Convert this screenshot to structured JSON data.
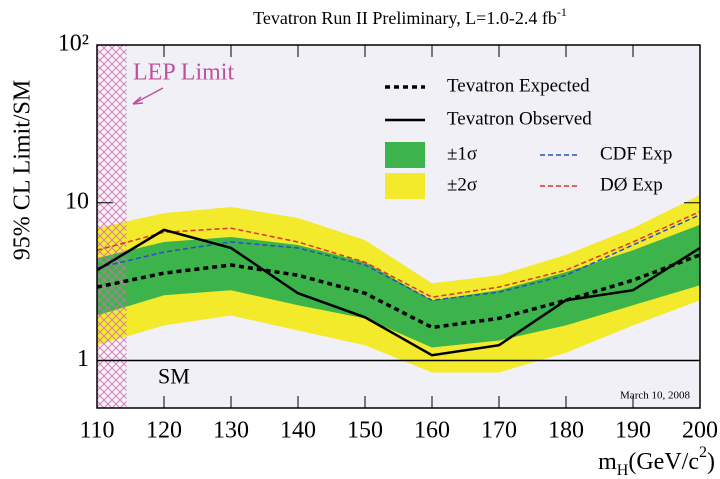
{
  "chart_data": {
    "type": "line",
    "title": [
      "Tevatron Run II Preliminary, L=1.0-2.4 fb",
      "-1"
    ],
    "x_label": [
      "m",
      "H",
      "(GeV/c",
      "2",
      ")"
    ],
    "y_label": "95% CL Limit/SM",
    "x": [
      110,
      120,
      130,
      140,
      150,
      160,
      170,
      180,
      190,
      200
    ],
    "xlim": [
      110,
      200
    ],
    "xticks": [
      110,
      120,
      130,
      140,
      150,
      160,
      170,
      180,
      190,
      200
    ],
    "ylim": [
      0.5,
      100
    ],
    "yticks": [
      1,
      10,
      {
        "value": 100,
        "label": "10²"
      }
    ],
    "log_y": true,
    "series": [
      {
        "name": "Tevatron Expected",
        "color": "#000000",
        "style": "dotted",
        "values": [
          2.92,
          3.58,
          4.03,
          3.47,
          2.67,
          1.62,
          1.85,
          2.41,
          3.23,
          4.67
        ]
      },
      {
        "name": "Tevatron Observed",
        "color": "#000000",
        "style": "solid",
        "values": [
          3.74,
          6.73,
          5.17,
          2.67,
          1.88,
          1.08,
          1.25,
          2.41,
          2.79,
          5.17
        ]
      },
      {
        "name": "±1σ",
        "color": "#3cb44b",
        "style": "band",
        "lower": [
          1.93,
          2.59,
          2.79,
          2.24,
          1.85,
          1.21,
          1.34,
          1.67,
          2.24,
          3.0
        ],
        "upper": [
          4.46,
          5.64,
          6.07,
          5.4,
          4.2,
          2.41,
          2.79,
          3.63,
          5.0,
          7.25
        ]
      },
      {
        "name": "±2σ",
        "color": "#f2ea2a",
        "style": "band",
        "lower": [
          1.25,
          1.67,
          1.93,
          1.55,
          1.25,
          0.84,
          0.84,
          1.12,
          1.67,
          2.41
        ],
        "upper": [
          6.9,
          8.6,
          9.4,
          8.0,
          5.8,
          3.09,
          3.47,
          4.67,
          6.9,
          11.2
        ]
      },
      {
        "name": "CDF Exp",
        "color": "#2a4fc0",
        "style": "dashed",
        "values": [
          3.86,
          4.87,
          5.64,
          5.17,
          4.03,
          2.41,
          2.71,
          3.47,
          5.4,
          8.4
        ]
      },
      {
        "name": "DØ Exp",
        "color": "#e0302a",
        "style": "dashed",
        "values": [
          5.0,
          6.5,
          6.9,
          5.64,
          4.2,
          2.52,
          2.92,
          3.74,
          5.64,
          8.8
        ]
      }
    ],
    "annotations": [
      {
        "text": "LEP Limit",
        "x": 114.4,
        "color": "#c050a0"
      },
      {
        "text": "SM",
        "y": 1
      },
      {
        "text": "March 10, 2008"
      }
    ]
  }
}
